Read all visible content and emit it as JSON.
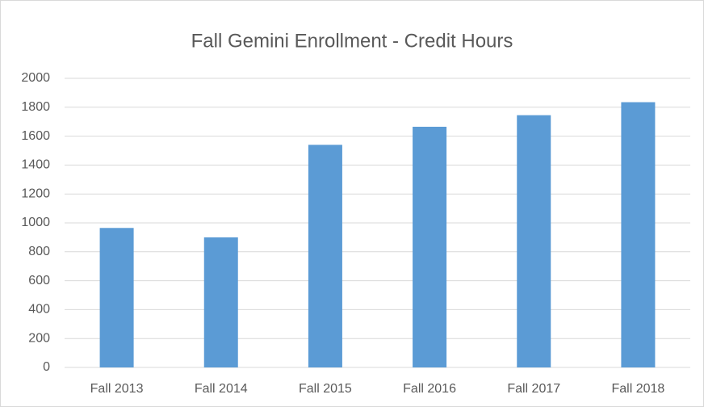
{
  "chart_data": {
    "type": "bar",
    "title": "Fall Gemini Enrollment - Credit Hours",
    "categories": [
      "Fall 2013",
      "Fall 2014",
      "Fall 2015",
      "Fall 2016",
      "Fall 2017",
      "Fall 2018"
    ],
    "values": [
      965,
      900,
      1540,
      1665,
      1745,
      1835
    ],
    "color": "#5b9bd5",
    "ylim": [
      0,
      2000
    ],
    "yticks": [
      0,
      200,
      400,
      600,
      800,
      1000,
      1200,
      1400,
      1600,
      1800,
      2000
    ],
    "grid": true
  }
}
